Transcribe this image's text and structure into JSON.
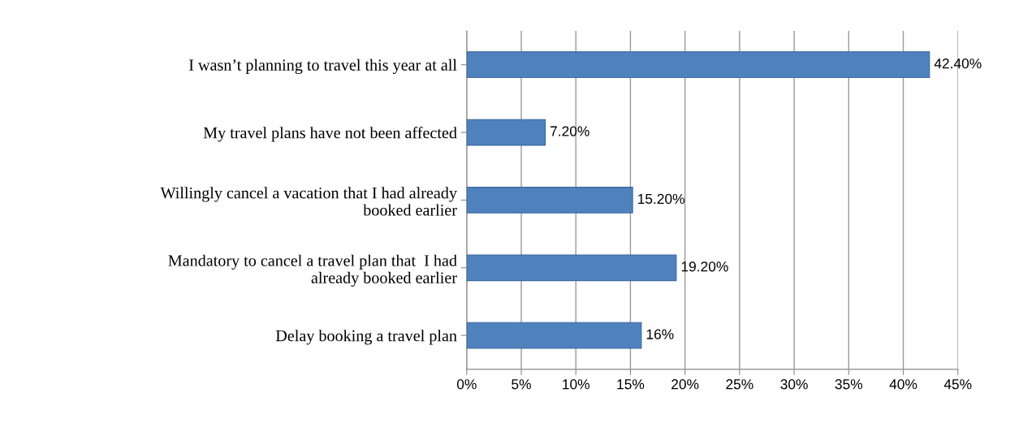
{
  "chart_data": {
    "type": "bar",
    "orientation": "horizontal",
    "categories": [
      "I wasn’t planning to travel this year at all",
      "My travel plans have not been affected",
      "Willingly cancel a vacation that I had already\nbooked earlier",
      "Mandatory to cancel a travel plan that  I had\nalready booked earlier",
      "Delay booking a travel plan"
    ],
    "values": [
      42.4,
      7.2,
      15.2,
      19.2,
      16
    ],
    "value_labels": [
      "42.40%",
      "7.20%",
      "15.20%",
      "19.20%",
      "16%"
    ],
    "color": "#4f81bd",
    "xlim": [
      0,
      45
    ],
    "xticks": [
      {
        "value": 0,
        "label": "0%"
      },
      {
        "value": 5,
        "label": "5%"
      },
      {
        "value": 10,
        "label": "10%"
      },
      {
        "value": 15,
        "label": "15%"
      },
      {
        "value": 20,
        "label": "20%"
      },
      {
        "value": 25,
        "label": "25%"
      },
      {
        "value": 30,
        "label": "30%"
      },
      {
        "value": 35,
        "label": "35%"
      },
      {
        "value": 40,
        "label": "40%"
      },
      {
        "value": 45,
        "label": "45%"
      }
    ],
    "grid": "x"
  }
}
